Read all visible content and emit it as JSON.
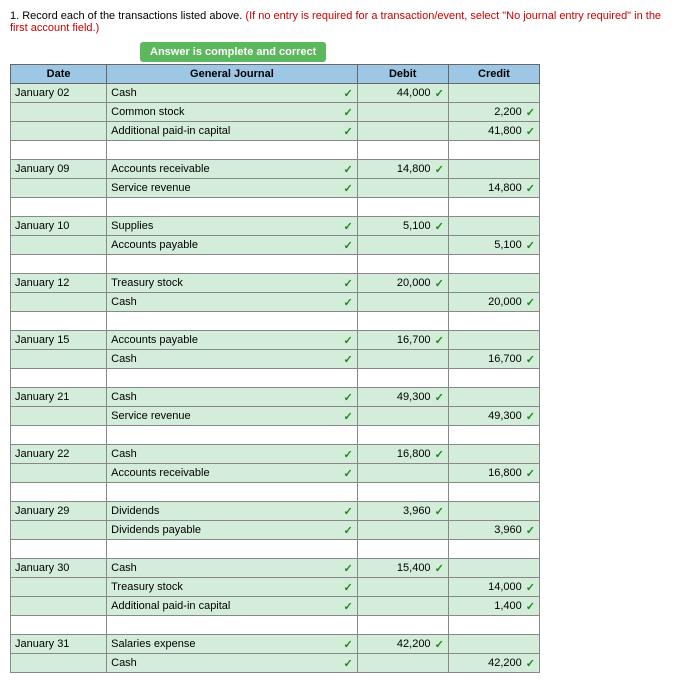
{
  "instruction_prefix": "1. Record each of the transactions listed above. ",
  "instruction_red": "(If no entry is required for a transaction/event, select \"No journal entry required\" in the first account field.)",
  "banner": "Answer is complete and correct",
  "headers": {
    "date": "Date",
    "journal": "General Journal",
    "debit": "Debit",
    "credit": "Credit"
  },
  "rows": [
    {
      "type": "green",
      "date": "January 02",
      "journal": "Cash",
      "debit": "44,000",
      "credit": ""
    },
    {
      "type": "green",
      "date": "",
      "journal": "Common stock",
      "debit": "",
      "credit": "2,200"
    },
    {
      "type": "green",
      "date": "",
      "journal": "Additional paid-in capital",
      "debit": "",
      "credit": "41,800"
    },
    {
      "type": "white",
      "date": "",
      "journal": "",
      "debit": "",
      "credit": ""
    },
    {
      "type": "green",
      "date": "January 09",
      "journal": "Accounts receivable",
      "debit": "14,800",
      "credit": ""
    },
    {
      "type": "green",
      "date": "",
      "journal": "Service revenue",
      "debit": "",
      "credit": "14,800"
    },
    {
      "type": "white",
      "date": "",
      "journal": "",
      "debit": "",
      "credit": ""
    },
    {
      "type": "green",
      "date": "January 10",
      "journal": "Supplies",
      "debit": "5,100",
      "credit": ""
    },
    {
      "type": "green",
      "date": "",
      "journal": "Accounts payable",
      "debit": "",
      "credit": "5,100"
    },
    {
      "type": "white",
      "date": "",
      "journal": "",
      "debit": "",
      "credit": ""
    },
    {
      "type": "green",
      "date": "January 12",
      "journal": "Treasury stock",
      "debit": "20,000",
      "credit": ""
    },
    {
      "type": "green",
      "date": "",
      "journal": "Cash",
      "debit": "",
      "credit": "20,000"
    },
    {
      "type": "white",
      "date": "",
      "journal": "",
      "debit": "",
      "credit": ""
    },
    {
      "type": "green",
      "date": "January 15",
      "journal": "Accounts payable",
      "debit": "16,700",
      "credit": ""
    },
    {
      "type": "green",
      "date": "",
      "journal": "Cash",
      "debit": "",
      "credit": "16,700"
    },
    {
      "type": "white",
      "date": "",
      "journal": "",
      "debit": "",
      "credit": ""
    },
    {
      "type": "green",
      "date": "January 21",
      "journal": "Cash",
      "debit": "49,300",
      "credit": ""
    },
    {
      "type": "green",
      "date": "",
      "journal": "Service revenue",
      "debit": "",
      "credit": "49,300"
    },
    {
      "type": "white",
      "date": "",
      "journal": "",
      "debit": "",
      "credit": ""
    },
    {
      "type": "green",
      "date": "January 22",
      "journal": "Cash",
      "debit": "16,800",
      "credit": ""
    },
    {
      "type": "green",
      "date": "",
      "journal": "Accounts receivable",
      "debit": "",
      "credit": "16,800"
    },
    {
      "type": "white",
      "date": "",
      "journal": "",
      "debit": "",
      "credit": ""
    },
    {
      "type": "green",
      "date": "January 29",
      "journal": "Dividends",
      "debit": "3,960",
      "credit": ""
    },
    {
      "type": "green",
      "date": "",
      "journal": "Dividends payable",
      "debit": "",
      "credit": "3,960"
    },
    {
      "type": "white",
      "date": "",
      "journal": "",
      "debit": "",
      "credit": ""
    },
    {
      "type": "green",
      "date": "January 30",
      "journal": "Cash",
      "debit": "15,400",
      "credit": ""
    },
    {
      "type": "green",
      "date": "",
      "journal": "Treasury stock",
      "debit": "",
      "credit": "14,000"
    },
    {
      "type": "green",
      "date": "",
      "journal": "Additional paid-in capital",
      "debit": "",
      "credit": "1,400"
    },
    {
      "type": "white",
      "date": "",
      "journal": "",
      "debit": "",
      "credit": ""
    },
    {
      "type": "green",
      "date": "January 31",
      "journal": "Salaries expense",
      "debit": "42,200",
      "credit": ""
    },
    {
      "type": "green",
      "date": "",
      "journal": "Cash",
      "debit": "",
      "credit": "42,200"
    }
  ],
  "checkmark": "✓"
}
